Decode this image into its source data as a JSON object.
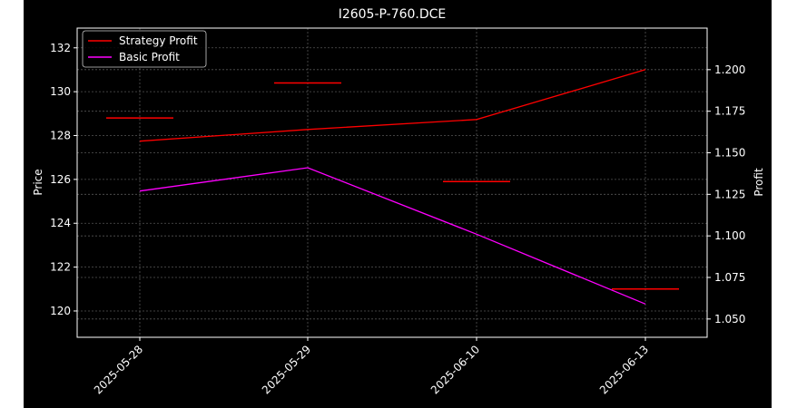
{
  "chart_data": {
    "type": "line",
    "title": "I2605-P-760.DCE",
    "ylabel": "Price",
    "ylabel_right": "Profit",
    "categories": [
      "2025-05-28",
      "2025-05-29",
      "2025-06-10",
      "2025-06-13"
    ],
    "price": {
      "values": [
        128.8,
        130.4,
        125.9,
        121.0
      ],
      "ylim": [
        118.8,
        132.9
      ],
      "ticks": [
        120,
        122,
        124,
        126,
        128,
        130,
        132
      ],
      "color": "#ff0000"
    },
    "series": [
      {
        "name": "Strategy Profit",
        "values": [
          1.157,
          1.164,
          1.17,
          1.2
        ],
        "color": "#ff0000"
      },
      {
        "name": "Basic Profit",
        "values": [
          1.127,
          1.141,
          1.101,
          1.059
        ],
        "color": "#ff00ff"
      }
    ],
    "profit_ylim": [
      1.039,
      1.225
    ],
    "profit_ticks": [
      "1.050",
      "1.075",
      "1.100",
      "1.125",
      "1.150",
      "1.175",
      "1.200"
    ],
    "grid": true,
    "legend_position": "top-left",
    "colors": {
      "background": "#000000",
      "frame": "#ffffff",
      "grid": "#555555",
      "outer_background": "#ffffff"
    }
  }
}
